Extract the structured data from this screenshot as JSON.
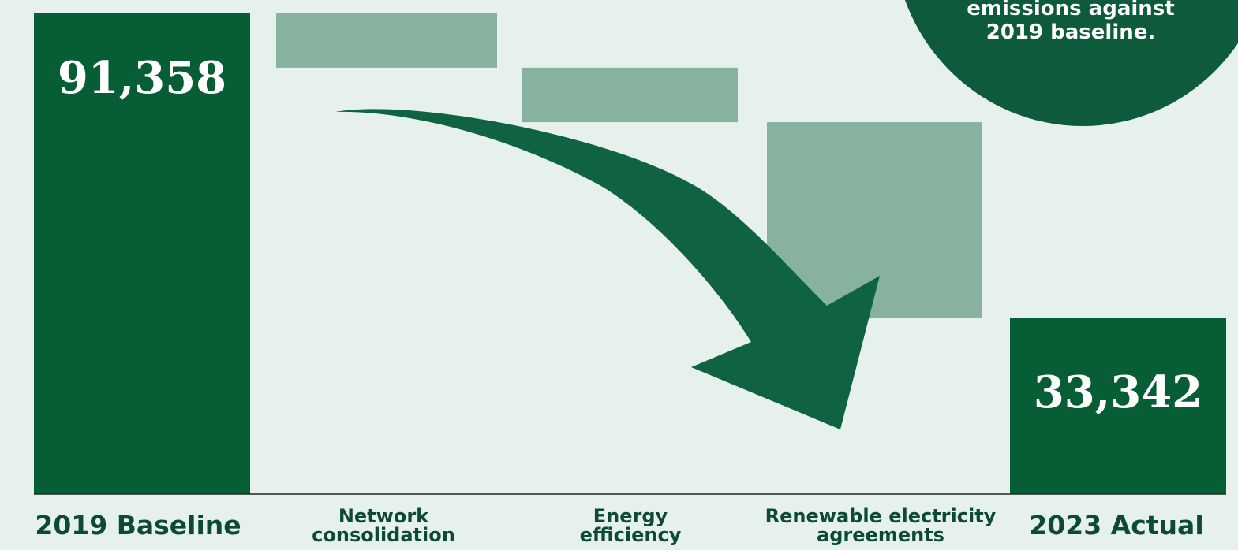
{
  "badge": {
    "line1": "emissions against",
    "line2": "2019 baseline."
  },
  "colors": {
    "background": "#e6f0ec",
    "total_bar": "#075e35",
    "reduction_bar": "#86b29e",
    "arrow": "#0f6341",
    "badge": "#0e5a3c",
    "label": "#0c4a33"
  },
  "chart_data": {
    "type": "bar",
    "subtype": "waterfall",
    "categories": [
      "2019 Baseline",
      "Network consolidation",
      "Energy efficiency",
      "Renewable electricity agreements",
      "2023 Actual"
    ],
    "category_lines": [
      [
        "2019 Baseline"
      ],
      [
        "Network",
        "consolidation"
      ],
      [
        "Energy",
        "efficiency"
      ],
      [
        "Renewable electricity",
        "agreements"
      ],
      [
        "2023 Actual"
      ]
    ],
    "bars": [
      {
        "kind": "total",
        "start": 0,
        "end": 91358,
        "label": "91,358"
      },
      {
        "kind": "decrease",
        "start": 91358,
        "end": 80910,
        "label": ""
      },
      {
        "kind": "decrease",
        "start": 80910,
        "end": 70560,
        "label": ""
      },
      {
        "kind": "decrease",
        "start": 70560,
        "end": 33342,
        "label": ""
      },
      {
        "kind": "total",
        "start": 0,
        "end": 33342,
        "label": "33,342"
      }
    ],
    "ylim": [
      0,
      91358
    ],
    "grid": false,
    "legend": "none"
  }
}
